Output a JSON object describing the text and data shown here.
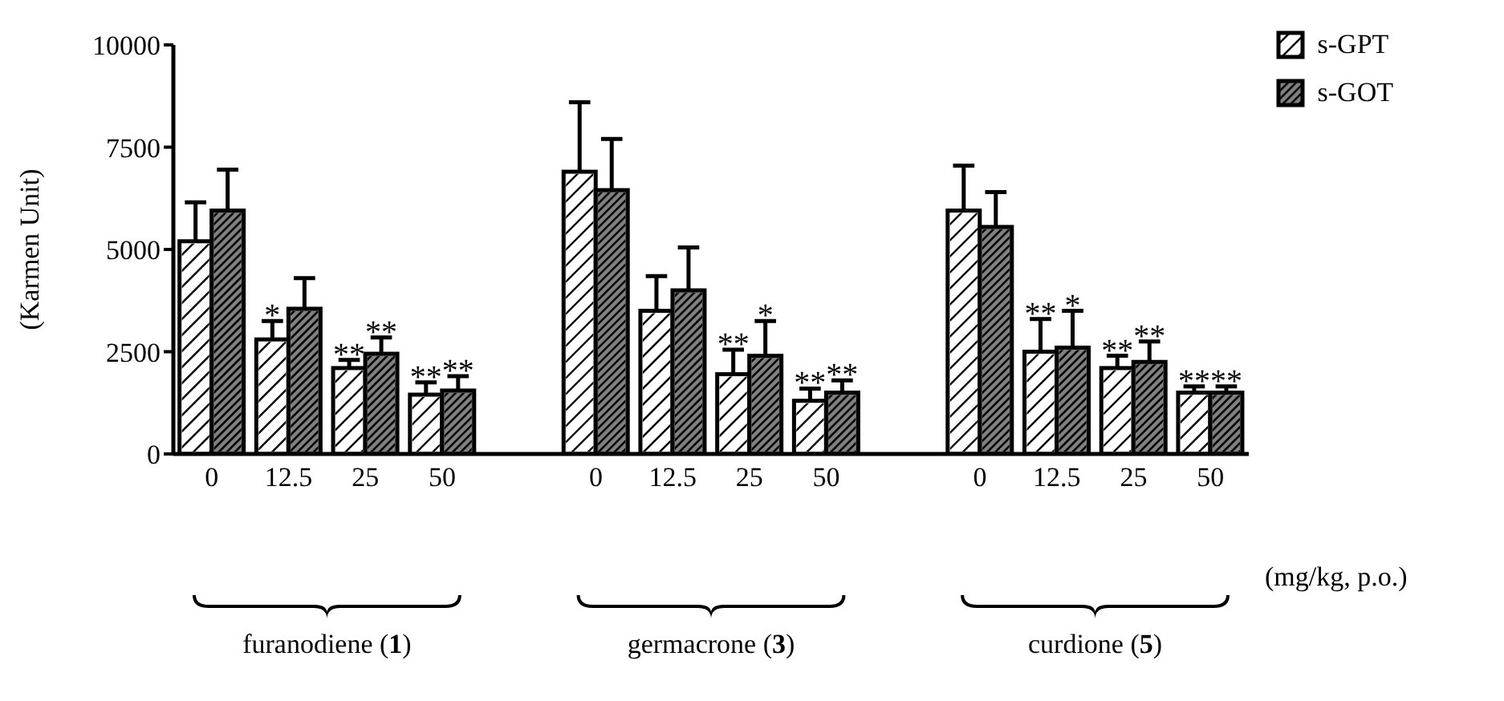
{
  "chart_data": {
    "type": "bar",
    "ylabel": "(Karmen Unit)",
    "categories": [
      "0",
      "12.5",
      "25",
      "50",
      null,
      "0",
      "12.5",
      "25",
      "50",
      null,
      "0",
      "12.5",
      "25",
      "50"
    ],
    "series": [
      {
        "name": "s-GPT",
        "color": "#ffffff",
        "values": [
          5200,
          2800,
          2100,
          1450,
          null,
          6900,
          3500,
          1950,
          1300,
          null,
          5950,
          2500,
          2100,
          1500
        ],
        "errors": [
          [
            5200,
            6150
          ],
          [
            2800,
            3250
          ],
          [
            2100,
            2300
          ],
          [
            1450,
            1750
          ],
          null,
          [
            6900,
            8600
          ],
          [
            3500,
            4350
          ],
          [
            1950,
            2550
          ],
          [
            1300,
            1600
          ],
          null,
          [
            5950,
            7050
          ],
          [
            2500,
            3300
          ],
          [
            2100,
            2400
          ],
          [
            1500,
            1650
          ]
        ],
        "value_labels": [
          null,
          "*",
          "**",
          "**",
          null,
          null,
          null,
          "**",
          "**",
          null,
          null,
          "**",
          "**",
          "**"
        ]
      },
      {
        "name": "s-GOT",
        "color": "#808080",
        "values": [
          5950,
          3550,
          2450,
          1550,
          null,
          6450,
          4000,
          2400,
          1500,
          null,
          5550,
          2600,
          2250,
          1500
        ],
        "errors": [
          [
            5950,
            6950
          ],
          [
            3550,
            4300
          ],
          [
            2450,
            2850
          ],
          [
            1550,
            1900
          ],
          null,
          [
            6450,
            7700
          ],
          [
            4000,
            5050
          ],
          [
            2400,
            3250
          ],
          [
            1500,
            1800
          ],
          null,
          [
            5550,
            6400
          ],
          [
            2600,
            3500
          ],
          [
            2250,
            2750
          ],
          [
            1500,
            1650
          ]
        ],
        "value_labels": [
          null,
          null,
          "**",
          "**",
          null,
          null,
          null,
          "*",
          "**",
          null,
          null,
          "*",
          "**",
          "**"
        ]
      }
    ],
    "ylim": [
      0,
      10000
    ],
    "yticks": [
      0,
      2500,
      5000,
      7500,
      10000
    ],
    "grid": false,
    "legend": "top right",
    "annotations": [
      "furanodiene (1)",
      "germacrone (3)",
      "curdione (5)",
      "(mg/kg, p.o.)"
    ]
  }
}
